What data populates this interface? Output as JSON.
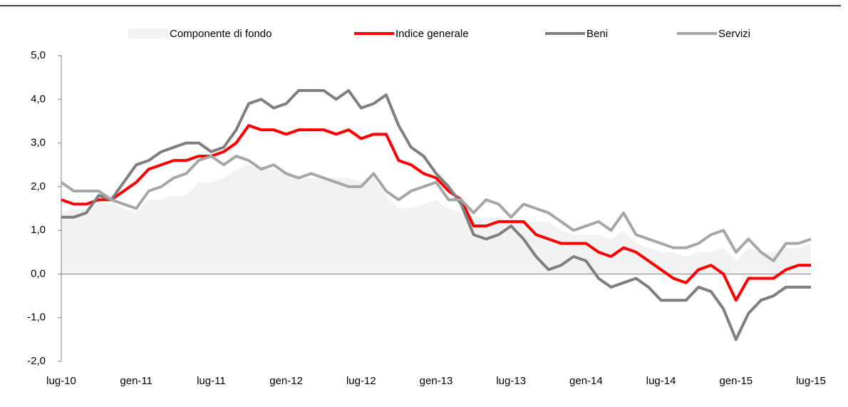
{
  "chart_data": {
    "type": "line",
    "categories": [
      "lug-10",
      null,
      null,
      null,
      null,
      null,
      "gen-11",
      null,
      null,
      null,
      null,
      null,
      "lug-11",
      null,
      null,
      null,
      null,
      null,
      "gen-12",
      null,
      null,
      null,
      null,
      null,
      "lug-12",
      null,
      null,
      null,
      null,
      null,
      "gen-13",
      null,
      null,
      null,
      null,
      null,
      "lug-13",
      null,
      null,
      null,
      null,
      null,
      "gen-14",
      null,
      null,
      null,
      null,
      null,
      "lug-14",
      null,
      null,
      null,
      null,
      null,
      "gen-15",
      null,
      null,
      null,
      null,
      null,
      "lug-15"
    ],
    "ylim": [
      -2,
      5
    ],
    "yticks": [
      {
        "value": -2,
        "label": "-2,0"
      },
      {
        "value": -1,
        "label": "-1,0"
      },
      {
        "value": 0,
        "label": "0,0"
      },
      {
        "value": 1,
        "label": "1,0"
      },
      {
        "value": 2,
        "label": "2,0"
      },
      {
        "value": 3,
        "label": "3,0"
      },
      {
        "value": 4,
        "label": "4,0"
      },
      {
        "value": 5,
        "label": "5,0"
      }
    ],
    "series": [
      {
        "name": "Componente di fondo",
        "type": "area",
        "color": "#f2f2f2",
        "values": [
          1.4,
          1.5,
          1.5,
          1.6,
          1.6,
          1.5,
          1.4,
          1.7,
          1.7,
          1.8,
          1.8,
          2.1,
          2.1,
          2.2,
          2.4,
          2.5,
          2.4,
          2.4,
          2.3,
          2.2,
          2.2,
          2.2,
          2.2,
          2.2,
          2.1,
          2.2,
          1.8,
          1.5,
          1.5,
          1.6,
          1.7,
          1.5,
          1.4,
          1.3,
          1.3,
          1.3,
          1.2,
          1.2,
          1.2,
          1.2,
          1.0,
          0.9,
          0.9,
          0.9,
          0.8,
          1.0,
          0.7,
          0.6,
          0.5,
          0.5,
          0.4,
          0.5,
          0.5,
          0.6,
          0.3,
          0.6,
          0.5,
          0.5,
          0.6,
          0.6,
          0.7
        ]
      },
      {
        "name": "Indice generale",
        "type": "line",
        "color": "#ff0000",
        "values": [
          1.7,
          1.6,
          1.6,
          1.7,
          1.7,
          1.9,
          2.1,
          2.4,
          2.5,
          2.6,
          2.6,
          2.7,
          2.7,
          2.8,
          3.0,
          3.4,
          3.3,
          3.3,
          3.2,
          3.3,
          3.3,
          3.3,
          3.2,
          3.3,
          3.1,
          3.2,
          3.2,
          2.6,
          2.5,
          2.3,
          2.2,
          1.9,
          1.7,
          1.1,
          1.1,
          1.2,
          1.2,
          1.2,
          0.9,
          0.8,
          0.7,
          0.7,
          0.7,
          0.5,
          0.4,
          0.6,
          0.5,
          0.3,
          0.1,
          -0.1,
          -0.2,
          0.1,
          0.2,
          0.0,
          -0.6,
          -0.1,
          -0.1,
          -0.1,
          0.1,
          0.2,
          0.2
        ]
      },
      {
        "name": "Beni",
        "type": "line",
        "color": "#7f7f7f",
        "values": [
          1.3,
          1.3,
          1.4,
          1.8,
          1.7,
          2.1,
          2.5,
          2.6,
          2.8,
          2.9,
          3.0,
          3.0,
          2.8,
          2.9,
          3.3,
          3.9,
          4.0,
          3.8,
          3.9,
          4.2,
          4.2,
          4.2,
          4.0,
          4.2,
          3.8,
          3.9,
          4.1,
          3.4,
          2.9,
          2.7,
          2.3,
          2.0,
          1.6,
          0.9,
          0.8,
          0.9,
          1.1,
          0.8,
          0.4,
          0.1,
          0.2,
          0.4,
          0.3,
          -0.1,
          -0.3,
          -0.2,
          -0.1,
          -0.3,
          -0.6,
          -0.6,
          -0.6,
          -0.3,
          -0.4,
          -0.8,
          -1.5,
          -0.9,
          -0.6,
          -0.5,
          -0.3,
          -0.3,
          -0.3
        ]
      },
      {
        "name": "Servizi",
        "type": "line",
        "color": "#a6a6a6",
        "values": [
          2.1,
          1.9,
          1.9,
          1.9,
          1.7,
          1.6,
          1.5,
          1.9,
          2.0,
          2.2,
          2.3,
          2.6,
          2.7,
          2.5,
          2.7,
          2.6,
          2.4,
          2.5,
          2.3,
          2.2,
          2.3,
          2.2,
          2.1,
          2.0,
          2.0,
          2.3,
          1.9,
          1.7,
          1.9,
          2.0,
          2.1,
          1.7,
          1.7,
          1.4,
          1.7,
          1.6,
          1.3,
          1.6,
          1.5,
          1.4,
          1.2,
          1.0,
          1.1,
          1.2,
          1.0,
          1.4,
          0.9,
          0.8,
          0.7,
          0.6,
          0.6,
          0.7,
          0.9,
          1.0,
          0.5,
          0.8,
          0.5,
          0.3,
          0.7,
          0.7,
          0.8
        ]
      }
    ]
  }
}
